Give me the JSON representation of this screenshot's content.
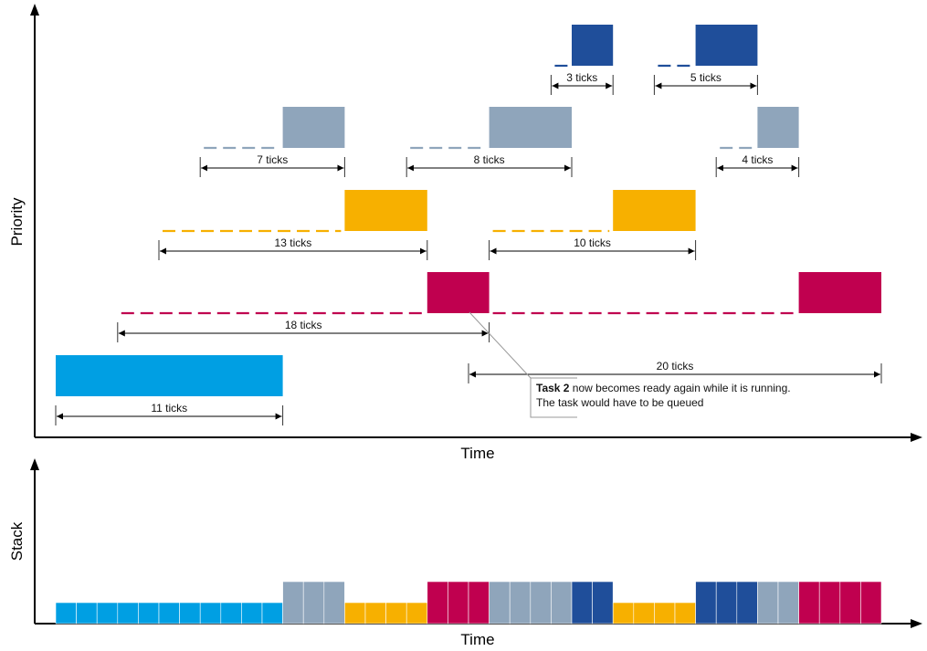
{
  "axes": {
    "top": {
      "x_label": "Time",
      "y_label": "Priority"
    },
    "bottom": {
      "x_label": "Time",
      "y_label": "Stack"
    }
  },
  "tasks": [
    {
      "id": "t1",
      "color": "#009fe3"
    },
    {
      "id": "t2",
      "color": "#c0004f"
    },
    {
      "id": "t3",
      "color": "#f7b000"
    },
    {
      "id": "t4",
      "color": "#8fa5bb"
    },
    {
      "id": "t5",
      "color": "#1f4e9a"
    }
  ],
  "priority_chart": {
    "tick_unit": "ticks",
    "runs": [
      {
        "task": "t1",
        "start": 0,
        "end": 11
      },
      {
        "task": "t4",
        "start": 11,
        "end": 14
      },
      {
        "task": "t3",
        "start": 14,
        "end": 18
      },
      {
        "task": "t2",
        "start": 18,
        "end": 21
      },
      {
        "task": "t4",
        "start": 21,
        "end": 25
      },
      {
        "task": "t5",
        "start": 25,
        "end": 27
      },
      {
        "task": "t3",
        "start": 27,
        "end": 31
      },
      {
        "task": "t5",
        "start": 31,
        "end": 34
      },
      {
        "task": "t4",
        "start": 34,
        "end": 36
      },
      {
        "task": "t2",
        "start": 36,
        "end": 40
      }
    ],
    "waits": [
      {
        "task": "t2",
        "start": 3,
        "end": 18
      },
      {
        "task": "t3",
        "start": 5,
        "end": 14
      },
      {
        "task": "t4",
        "start": 7,
        "end": 11
      },
      {
        "task": "t4",
        "start": 17,
        "end": 21
      },
      {
        "task": "t3",
        "start": 21,
        "end": 27
      },
      {
        "task": "t2",
        "start": 21,
        "end": 36
      },
      {
        "task": "t5",
        "start": 24,
        "end": 25
      },
      {
        "task": "t5",
        "start": 29,
        "end": 31
      },
      {
        "task": "t4",
        "start": 32,
        "end": 34
      }
    ],
    "intervals": [
      {
        "task": "t1",
        "start": 0,
        "end": 11,
        "label": "11 ticks"
      },
      {
        "task": "t2",
        "start": 3,
        "end": 21,
        "label": "18 ticks",
        "offset": 1
      },
      {
        "task": "t2",
        "start": 20,
        "end": 40,
        "label": "20 ticks",
        "offset": 2
      },
      {
        "task": "t3",
        "start": 5,
        "end": 18,
        "label": "13 ticks"
      },
      {
        "task": "t3",
        "start": 21,
        "end": 31,
        "label": "10 ticks"
      },
      {
        "task": "t4",
        "start": 7,
        "end": 14,
        "label": "7 ticks"
      },
      {
        "task": "t4",
        "start": 17,
        "end": 25,
        "label": "8 ticks"
      },
      {
        "task": "t4",
        "start": 32,
        "end": 36,
        "label": "4 ticks"
      },
      {
        "task": "t5",
        "start": 24,
        "end": 27,
        "label": "3 ticks"
      },
      {
        "task": "t5",
        "start": 29,
        "end": 34,
        "label": "5 ticks"
      }
    ]
  },
  "stack_chart": {
    "segments": [
      {
        "task": "t1",
        "start": 0,
        "end": 11,
        "level": 1
      },
      {
        "task": "t4",
        "start": 11,
        "end": 14,
        "level": 2
      },
      {
        "task": "t3",
        "start": 14,
        "end": 18,
        "level": 1
      },
      {
        "task": "t2",
        "start": 18,
        "end": 21,
        "level": 2
      },
      {
        "task": "t4",
        "start": 21,
        "end": 25,
        "level": 2
      },
      {
        "task": "t5",
        "start": 25,
        "end": 27,
        "level": 2
      },
      {
        "task": "t3",
        "start": 27,
        "end": 31,
        "level": 1
      },
      {
        "task": "t5",
        "start": 31,
        "end": 34,
        "level": 2
      },
      {
        "task": "t4",
        "start": 34,
        "end": 36,
        "level": 2
      },
      {
        "task": "t2",
        "start": 36,
        "end": 40,
        "level": 2
      }
    ]
  },
  "annotation": {
    "bold": "Task 2",
    "line1": " now becomes ready again while it is running.",
    "line2": "The task would have to be queued",
    "at_tick": 20
  }
}
